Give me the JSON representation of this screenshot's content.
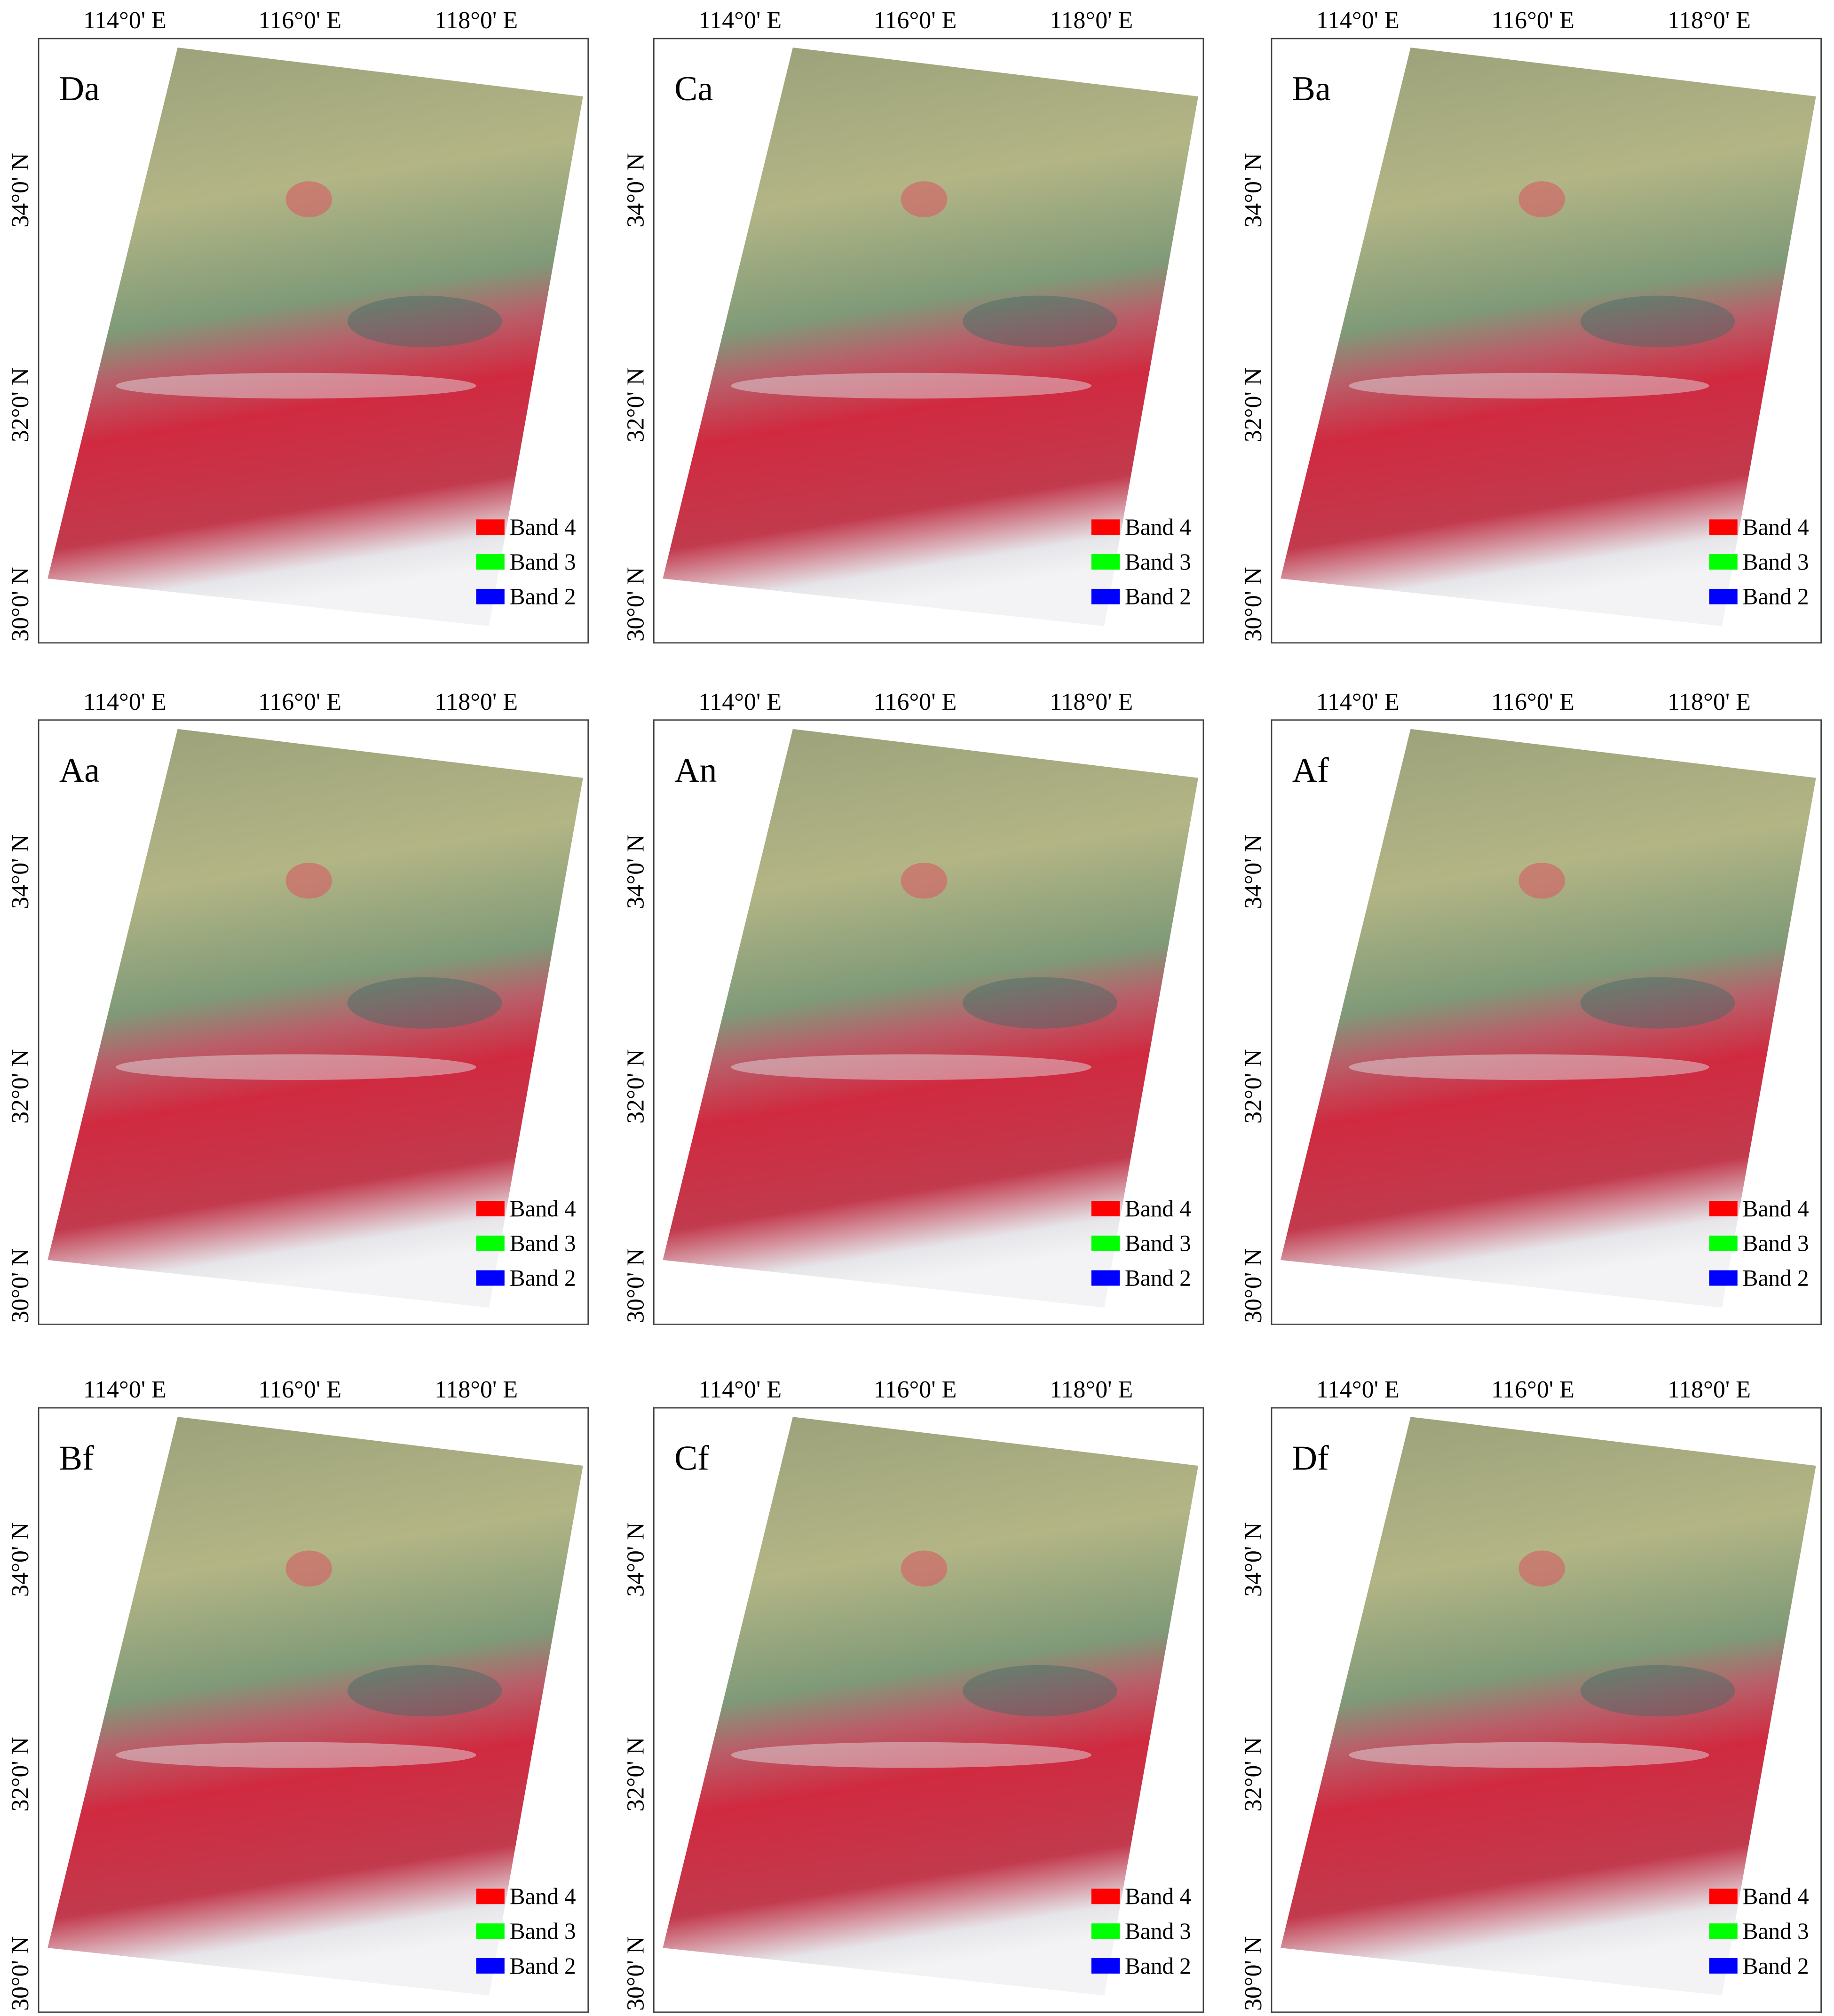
{
  "panels": [
    {
      "label": "Da"
    },
    {
      "label": "Ca"
    },
    {
      "label": "Ba"
    },
    {
      "label": "Aa"
    },
    {
      "label": "An"
    },
    {
      "label": "Af"
    },
    {
      "label": "Bf"
    },
    {
      "label": "Cf"
    },
    {
      "label": "Df"
    }
  ],
  "x_ticks": [
    "114°0' E",
    "116°0' E",
    "118°0' E"
  ],
  "y_ticks": [
    "34°0' N",
    "32°0' N",
    "30°0' N"
  ],
  "legend": [
    {
      "label": "Band 4",
      "color": "#ff0000"
    },
    {
      "label": "Band 3",
      "color": "#00ff00"
    },
    {
      "label": "Band 2",
      "color": "#0000ff"
    }
  ]
}
